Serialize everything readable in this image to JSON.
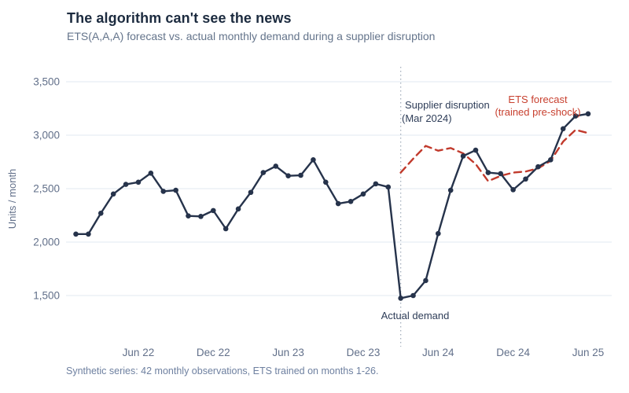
{
  "header": {
    "title": "The algorithm can't see the news",
    "subtitle": "ETS(A,A,A) forecast vs. actual monthly demand during a supplier disruption"
  },
  "footer": {
    "note": "Synthetic series: 42 monthly observations, ETS trained on months 1-26."
  },
  "colors": {
    "actual_line": "#26334b",
    "forecast_line": "#c13a2c",
    "grid": "#e8edf4",
    "axis_text": "#62708a",
    "annotation_navy": "#2e3d58",
    "annotation_red": "#c8402f",
    "disruption_line": "#a6b0bd"
  },
  "chart_data": {
    "type": "line",
    "title": "The algorithm can't see the news",
    "subtitle": "ETS(A,A,A) forecast vs. actual monthly demand during a supplier disruption",
    "ylabel": "Units / month",
    "xlabel": "",
    "grid": "horizontal-only",
    "legend_position": "inline-annotations",
    "months_start": "Jan 2022",
    "months_end": "Jun 2025",
    "n_months": 42,
    "ylim": [
      1400,
      3640
    ],
    "y_ticks": [
      1500,
      2000,
      2500,
      3000,
      3500
    ],
    "y_tick_labels": [
      "1,500",
      "2,000",
      "2,500",
      "3,000",
      "3,500"
    ],
    "x_tick_labels": [
      "Jun 22",
      "Dec 22",
      "Jun 23",
      "Dec 23",
      "Jun 24",
      "Dec 24",
      "Jun 25"
    ],
    "x_tick_month_indices": [
      5,
      11,
      17,
      23,
      29,
      35,
      41
    ],
    "series": [
      {
        "name": "Actual demand",
        "style": "solid-with-markers",
        "start_index": 0,
        "values": [
          2075,
          2075,
          2270,
          2450,
          2540,
          2560,
          2645,
          2475,
          2485,
          2245,
          2240,
          2295,
          2125,
          2310,
          2465,
          2650,
          2710,
          2620,
          2625,
          2770,
          2560,
          2360,
          2380,
          2450,
          2545,
          2515,
          1475,
          1500,
          1640,
          2080,
          2485,
          2805,
          2860,
          2650,
          2640,
          2490,
          2590,
          2705,
          2770,
          3060,
          3180,
          3200
        ]
      },
      {
        "name": "ETS forecast (trained pre-shock)",
        "style": "dashed",
        "start_index": 26,
        "values": [
          2650,
          2780,
          2900,
          2855,
          2880,
          2830,
          2730,
          2570,
          2620,
          2650,
          2660,
          2690,
          2760,
          2940,
          3050,
          3020
        ]
      }
    ],
    "disruption": {
      "month_index": 26,
      "label_line1": "Supplier disruption",
      "label_line2": "(Mar 2024)"
    },
    "annotations": {
      "forecast_line1": "ETS forecast",
      "forecast_line2": "(trained pre-shock)",
      "actual_label": "Actual demand"
    }
  }
}
